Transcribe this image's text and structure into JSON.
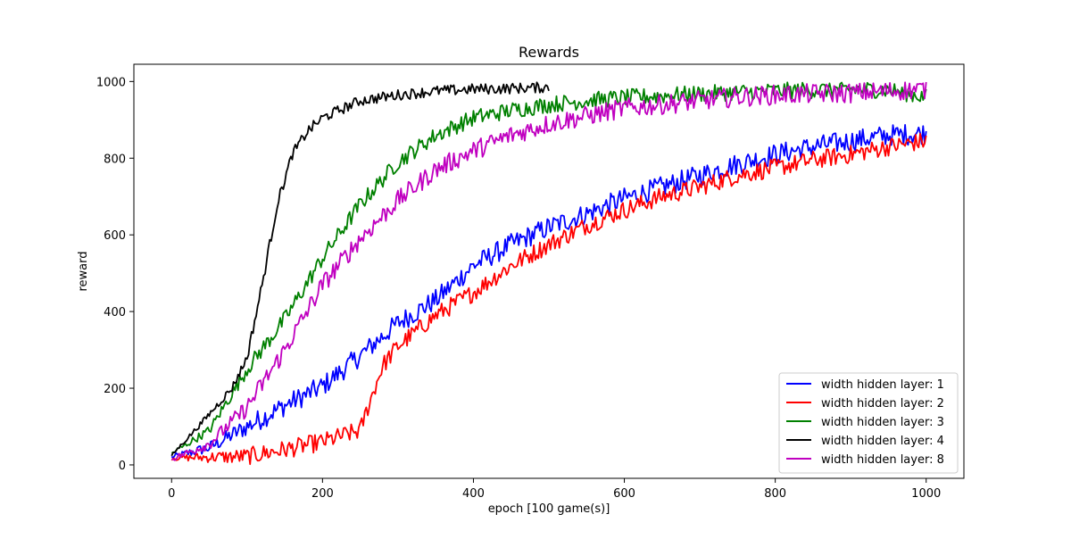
{
  "chart_data": {
    "type": "line",
    "title": "Rewards",
    "xlabel": "epoch [100 game(s)]",
    "ylabel": "reward",
    "xlim": [
      -50,
      1050
    ],
    "ylim": [
      -35,
      1045
    ],
    "xticks": [
      0,
      200,
      400,
      600,
      800,
      1000
    ],
    "yticks": [
      0,
      200,
      400,
      600,
      800,
      1000
    ],
    "grid": false,
    "legend_position": "lower-right",
    "series": [
      {
        "name": "width hidden layer: 1",
        "color": "#0000ff",
        "noise": 28,
        "x": [
          0,
          50,
          100,
          150,
          200,
          250,
          300,
          350,
          400,
          450,
          500,
          550,
          600,
          650,
          700,
          750,
          800,
          850,
          900,
          950,
          1000
        ],
        "y": [
          20,
          45,
          100,
          155,
          205,
          285,
          370,
          430,
          520,
          575,
          620,
          655,
          695,
          725,
          755,
          785,
          810,
          830,
          845,
          860,
          865
        ]
      },
      {
        "name": "width hidden layer: 2",
        "color": "#ff0000",
        "noise": 24,
        "x": [
          0,
          50,
          100,
          150,
          200,
          250,
          260,
          280,
          300,
          350,
          400,
          450,
          500,
          550,
          600,
          650,
          700,
          750,
          800,
          850,
          900,
          950,
          1000
        ],
        "y": [
          18,
          20,
          22,
          40,
          60,
          90,
          150,
          260,
          310,
          390,
          450,
          520,
          575,
          625,
          665,
          700,
          725,
          755,
          775,
          795,
          810,
          830,
          845
        ]
      },
      {
        "name": "width hidden layer: 3",
        "color": "#008000",
        "noise": 22,
        "x": [
          0,
          50,
          100,
          150,
          200,
          250,
          300,
          350,
          400,
          450,
          500,
          550,
          600,
          650,
          700,
          750,
          800,
          850,
          900,
          950,
          1000
        ],
        "y": [
          30,
          90,
          250,
          380,
          540,
          680,
          790,
          860,
          905,
          925,
          940,
          950,
          958,
          963,
          968,
          972,
          975,
          978,
          980,
          978,
          960
        ]
      },
      {
        "name": "width hidden layer: 4",
        "color": "#000000",
        "noise": 14,
        "x": [
          0,
          40,
          80,
          100,
          120,
          140,
          160,
          180,
          200,
          250,
          300,
          350,
          400,
          450,
          500
        ],
        "y": [
          25,
          110,
          200,
          280,
          470,
          680,
          810,
          870,
          905,
          950,
          965,
          975,
          980,
          982,
          985
        ]
      },
      {
        "name": "width hidden layer: 8",
        "color": "#c000c0",
        "noise": 26,
        "x": [
          0,
          50,
          100,
          150,
          200,
          250,
          300,
          350,
          400,
          450,
          500,
          550,
          600,
          650,
          700,
          750,
          800,
          850,
          900,
          950,
          1000
        ],
        "y": [
          15,
          55,
          150,
          300,
          470,
          590,
          690,
          770,
          820,
          860,
          890,
          910,
          930,
          940,
          950,
          960,
          965,
          968,
          970,
          975,
          980
        ]
      }
    ]
  }
}
